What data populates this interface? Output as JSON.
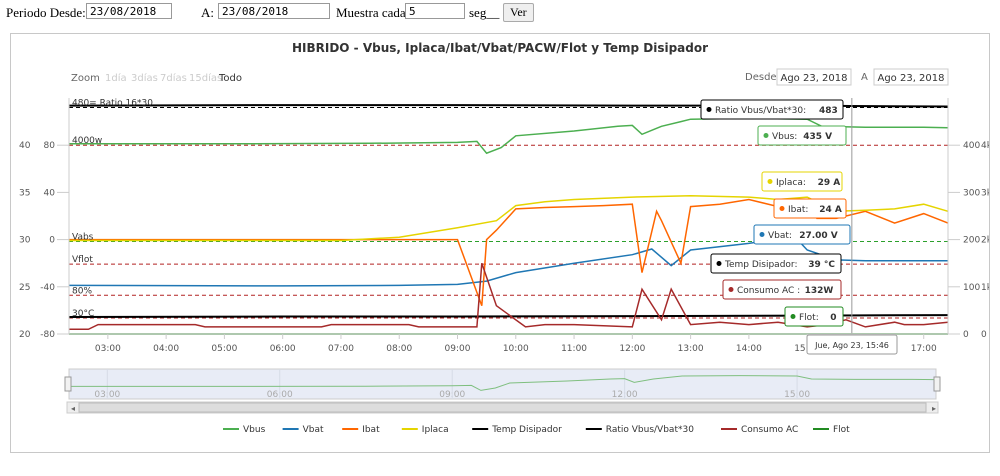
{
  "form": {
    "desde_label": "Periodo Desde:",
    "desde_value": "23/08/2018",
    "a_label": "A:",
    "a_value": "23/08/2018",
    "muestra_label": "Muestra cada:",
    "muestra_value": "5",
    "seg_label": "seg__",
    "ver_label": "Ver"
  },
  "chart_data": {
    "type": "line",
    "title": "HIBRIDO - Vbus, Iplaca/Ibat/Vbat/PACW/Flot y Temp Disipador",
    "zoom": {
      "label": "Zoom",
      "options": [
        "1día",
        "3días",
        "7días",
        "15días",
        "Todo"
      ],
      "selected": "Todo"
    },
    "range": {
      "from_label": "Desde",
      "from": "Ago 23, 2018",
      "to_label": "A",
      "to": "Ago 23, 2018"
    },
    "x_range": [
      "02:20",
      "17:25"
    ],
    "x_ticks": [
      "03:00",
      "04:00",
      "05:00",
      "06:00",
      "07:00",
      "08:00",
      "09:00",
      "10:00",
      "11:00",
      "12:00",
      "13:00",
      "14:00",
      "15:00",
      "16:00",
      "17:00"
    ],
    "y_axes": {
      "left_outer": [
        "20",
        "25",
        "30",
        "35",
        "40"
      ],
      "left_inner": [
        "-80",
        "-40",
        "0",
        "40",
        "80"
      ],
      "right_inner": [
        "0",
        "100",
        "200",
        "300",
        "400"
      ],
      "right_outer": [
        "0",
        "1k",
        "2k",
        "3k",
        "4k"
      ]
    },
    "plot_lines": [
      {
        "label": "480= Ratio 16*30",
        "y": 480,
        "color": "#000000"
      },
      {
        "label": "4000w",
        "y": 400,
        "color": "#b22222"
      },
      {
        "label": "Vabs",
        "y": 196,
        "color": "#2ca02c"
      },
      {
        "label": "Vflot",
        "y": 148,
        "color": "#b22222"
      },
      {
        "label": "80%",
        "y": 82,
        "color": "#b22222"
      },
      {
        "label": "30°C",
        "y": 34,
        "color": "#b22222"
      }
    ],
    "series": [
      {
        "name": "Vbus",
        "color": "#4caf50",
        "x": [
          "02:20",
          "05:00",
          "07:30",
          "09:00",
          "09:20",
          "09:30",
          "09:45",
          "10:00",
          "11:00",
          "11:45",
          "12:00",
          "12:10",
          "12:30",
          "12:50",
          "13:00",
          "14:00",
          "15:00",
          "15:15",
          "16:00",
          "17:00",
          "17:25"
        ],
        "y": [
          403,
          403,
          404,
          406,
          408,
          383,
          395,
          420,
          430,
          440,
          442,
          423,
          440,
          450,
          455,
          457,
          455,
          440,
          438,
          438,
          437
        ]
      },
      {
        "name": "Vbat",
        "color": "#1f77b4",
        "x": [
          "02:20",
          "06:00",
          "08:00",
          "09:00",
          "09:30",
          "10:00",
          "11:00",
          "12:00",
          "12:20",
          "12:40",
          "13:00",
          "14:00",
          "14:20",
          "14:50",
          "15:00",
          "15:30",
          "16:00",
          "17:00",
          "17:25"
        ],
        "y": [
          103,
          102,
          103,
          105,
          112,
          130,
          150,
          168,
          180,
          145,
          178,
          192,
          198,
          200,
          178,
          157,
          155,
          155,
          155
        ]
      },
      {
        "name": "Ibat",
        "color": "#ff6600",
        "x": [
          "02:20",
          "09:00",
          "09:25",
          "09:30",
          "09:40",
          "10:00",
          "10:30",
          "11:00",
          "11:30",
          "12:00",
          "12:10",
          "12:25",
          "12:30",
          "12:50",
          "13:00",
          "13:30",
          "14:00",
          "14:30",
          "15:00",
          "15:10",
          "15:30",
          "16:00",
          "16:30",
          "17:00",
          "17:25"
        ],
        "y": [
          200,
          200,
          60,
          200,
          220,
          265,
          268,
          270,
          272,
          275,
          130,
          260,
          240,
          150,
          270,
          275,
          285,
          270,
          285,
          245,
          245,
          260,
          235,
          255,
          235
        ]
      },
      {
        "name": "Iplaca",
        "color": "#e5d400",
        "x": [
          "02:20",
          "07:00",
          "08:00",
          "09:00",
          "09:40",
          "10:00",
          "10:30",
          "11:00",
          "12:00",
          "13:00",
          "14:00",
          "14:30",
          "15:00",
          "15:30",
          "16:00",
          "16:30",
          "17:00",
          "17:25"
        ],
        "y": [
          198,
          198,
          205,
          225,
          240,
          272,
          280,
          285,
          290,
          293,
          290,
          285,
          290,
          260,
          262,
          265,
          275,
          260
        ]
      },
      {
        "name": "Temp Disipador",
        "color": "#000000",
        "x": [
          "02:20",
          "06:00",
          "09:00",
          "12:00",
          "15:00",
          "17:25"
        ],
        "y": [
          36,
          37,
          37,
          38,
          39,
          40
        ]
      },
      {
        "name": "Ratio Vbus/Vbat*30",
        "color": "#000000",
        "x": [
          "02:20",
          "06:00",
          "09:00",
          "12:00",
          "15:00",
          "15:45",
          "17:25"
        ],
        "y": [
          484,
          485,
          485,
          484,
          484,
          483,
          482
        ]
      },
      {
        "name": "Consumo AC",
        "color": "#a52a2a",
        "x": [
          "02:20",
          "02:40",
          "02:50",
          "04:30",
          "04:40",
          "06:40",
          "06:50",
          "08:10",
          "08:20",
          "09:20",
          "09:25",
          "09:40",
          "10:10",
          "10:30",
          "11:00",
          "12:00",
          "12:10",
          "12:30",
          "12:40",
          "13:00",
          "13:30",
          "14:00",
          "14:30",
          "15:00",
          "15:20",
          "15:40",
          "16:00",
          "16:30",
          "16:40",
          "17:00",
          "17:25"
        ],
        "y": [
          10,
          10,
          20,
          20,
          15,
          15,
          20,
          20,
          15,
          15,
          150,
          60,
          15,
          20,
          20,
          15,
          95,
          30,
          95,
          20,
          25,
          20,
          25,
          15,
          20,
          30,
          15,
          25,
          20,
          20,
          25
        ]
      },
      {
        "name": "Flot",
        "color": "#228b22",
        "x": [
          "02:20",
          "17:25"
        ],
        "y": [
          0,
          0
        ]
      }
    ],
    "navigator": {
      "ticks": [
        "03:00",
        "06:00",
        "09:00",
        "12:00",
        "15:00"
      ]
    },
    "tooltips": {
      "ratio": {
        "label": "Ratio Vbus/Vbat*30: ",
        "value": "483",
        "color": "#000000"
      },
      "vbus": {
        "label": "Vbus: ",
        "value": "435 V",
        "color": "#4caf50"
      },
      "iplaca": {
        "label": "Iplaca: ",
        "value": "29 A",
        "color": "#e5d400"
      },
      "ibat": {
        "label": "Ibat: ",
        "value": "24 A",
        "color": "#ff6600"
      },
      "vbat": {
        "label": "Vbat: ",
        "value": "27.00 V",
        "color": "#1f77b4"
      },
      "temp": {
        "label": "Temp Disipador: ",
        "value": "39 °C",
        "color": "#000000"
      },
      "consumo": {
        "label": "Consumo AC : ",
        "value": "132W",
        "color": "#a52a2a"
      },
      "flot": {
        "label": "Flot: ",
        "value": "0",
        "color": "#228b22"
      },
      "date": "Jue, Ago 23, 15:46"
    }
  }
}
